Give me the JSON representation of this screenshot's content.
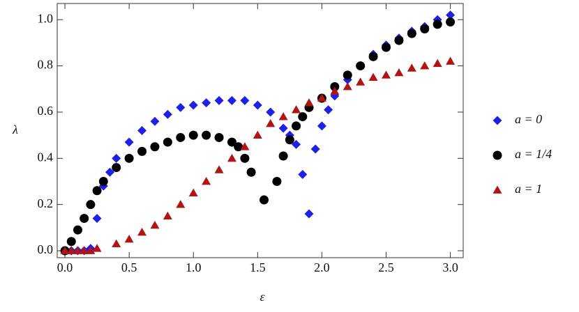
{
  "chart_data": {
    "type": "scatter",
    "xlabel": "ε",
    "ylabel": "λ",
    "xlim": [
      -0.06,
      3.1
    ],
    "ylim": [
      -0.03,
      1.07
    ],
    "xticks": [
      {
        "value": 0,
        "label": "0.0"
      },
      0.5,
      {
        "value": 1,
        "label": "1.0"
      },
      1.5,
      {
        "value": 2,
        "label": "2.0"
      },
      2.5,
      {
        "value": 3,
        "label": "3.0"
      }
    ],
    "yticks": [
      {
        "value": 0,
        "label": "0.0"
      },
      0.2,
      0.4,
      0.6,
      0.8,
      {
        "value": 1,
        "label": "1.0"
      }
    ],
    "legend": "right",
    "grid": false,
    "series": [
      {
        "name": "a = 0",
        "color": "#1f1fe6",
        "marker": "diamond",
        "x": [
          0,
          0.05,
          0.1,
          0.15,
          0.2,
          0.25,
          0.3,
          0.35,
          0.4,
          0.5,
          0.6,
          0.7,
          0.8,
          0.9,
          1.0,
          1.1,
          1.2,
          1.3,
          1.4,
          1.5,
          1.6,
          1.7,
          1.75,
          1.8,
          1.85,
          1.9,
          1.95,
          2.0,
          2.05,
          2.1,
          2.2,
          2.3,
          2.4,
          2.5,
          2.6,
          2.7,
          2.8,
          2.9,
          3.0
        ],
        "values": [
          0,
          0,
          0,
          0,
          0.01,
          0.14,
          0.28,
          0.34,
          0.4,
          0.47,
          0.52,
          0.56,
          0.59,
          0.62,
          0.63,
          0.64,
          0.65,
          0.65,
          0.65,
          0.63,
          0.6,
          0.53,
          0.5,
          0.46,
          0.33,
          0.16,
          0.44,
          0.54,
          0.61,
          0.67,
          0.74,
          0.8,
          0.85,
          0.89,
          0.92,
          0.95,
          0.97,
          1.0,
          1.02
        ]
      },
      {
        "name": "a = 1/4",
        "color": "#000000",
        "marker": "circle",
        "x": [
          0,
          0.05,
          0.1,
          0.15,
          0.2,
          0.25,
          0.3,
          0.4,
          0.5,
          0.6,
          0.7,
          0.8,
          0.9,
          1.0,
          1.1,
          1.2,
          1.3,
          1.35,
          1.4,
          1.45,
          1.55,
          1.65,
          1.7,
          1.75,
          1.8,
          1.85,
          1.9,
          2.0,
          2.1,
          2.2,
          2.3,
          2.4,
          2.5,
          2.6,
          2.7,
          2.8,
          2.9,
          3.0
        ],
        "values": [
          0,
          0.04,
          0.09,
          0.14,
          0.2,
          0.26,
          0.3,
          0.36,
          0.4,
          0.43,
          0.45,
          0.47,
          0.49,
          0.5,
          0.5,
          0.49,
          0.47,
          0.45,
          0.4,
          0.34,
          0.22,
          0.3,
          0.41,
          0.48,
          0.54,
          0.58,
          0.62,
          0.66,
          0.71,
          0.76,
          0.8,
          0.84,
          0.88,
          0.91,
          0.94,
          0.96,
          0.98,
          0.99
        ]
      },
      {
        "name": "a = 1",
        "color": "#b01414",
        "marker": "triangle",
        "x": [
          0,
          0.05,
          0.1,
          0.15,
          0.2,
          0.25,
          0.4,
          0.5,
          0.6,
          0.7,
          0.8,
          0.9,
          1.0,
          1.1,
          1.2,
          1.3,
          1.4,
          1.5,
          1.6,
          1.7,
          1.8,
          1.9,
          2.0,
          2.1,
          2.2,
          2.3,
          2.4,
          2.5,
          2.6,
          2.7,
          2.8,
          2.9,
          3.0
        ],
        "values": [
          0,
          0,
          0,
          0,
          0,
          0.01,
          0.03,
          0.05,
          0.08,
          0.11,
          0.15,
          0.2,
          0.25,
          0.3,
          0.35,
          0.4,
          0.45,
          0.5,
          0.55,
          0.58,
          0.61,
          0.64,
          0.66,
          0.69,
          0.71,
          0.73,
          0.75,
          0.76,
          0.77,
          0.79,
          0.8,
          0.81,
          0.82
        ]
      }
    ]
  }
}
